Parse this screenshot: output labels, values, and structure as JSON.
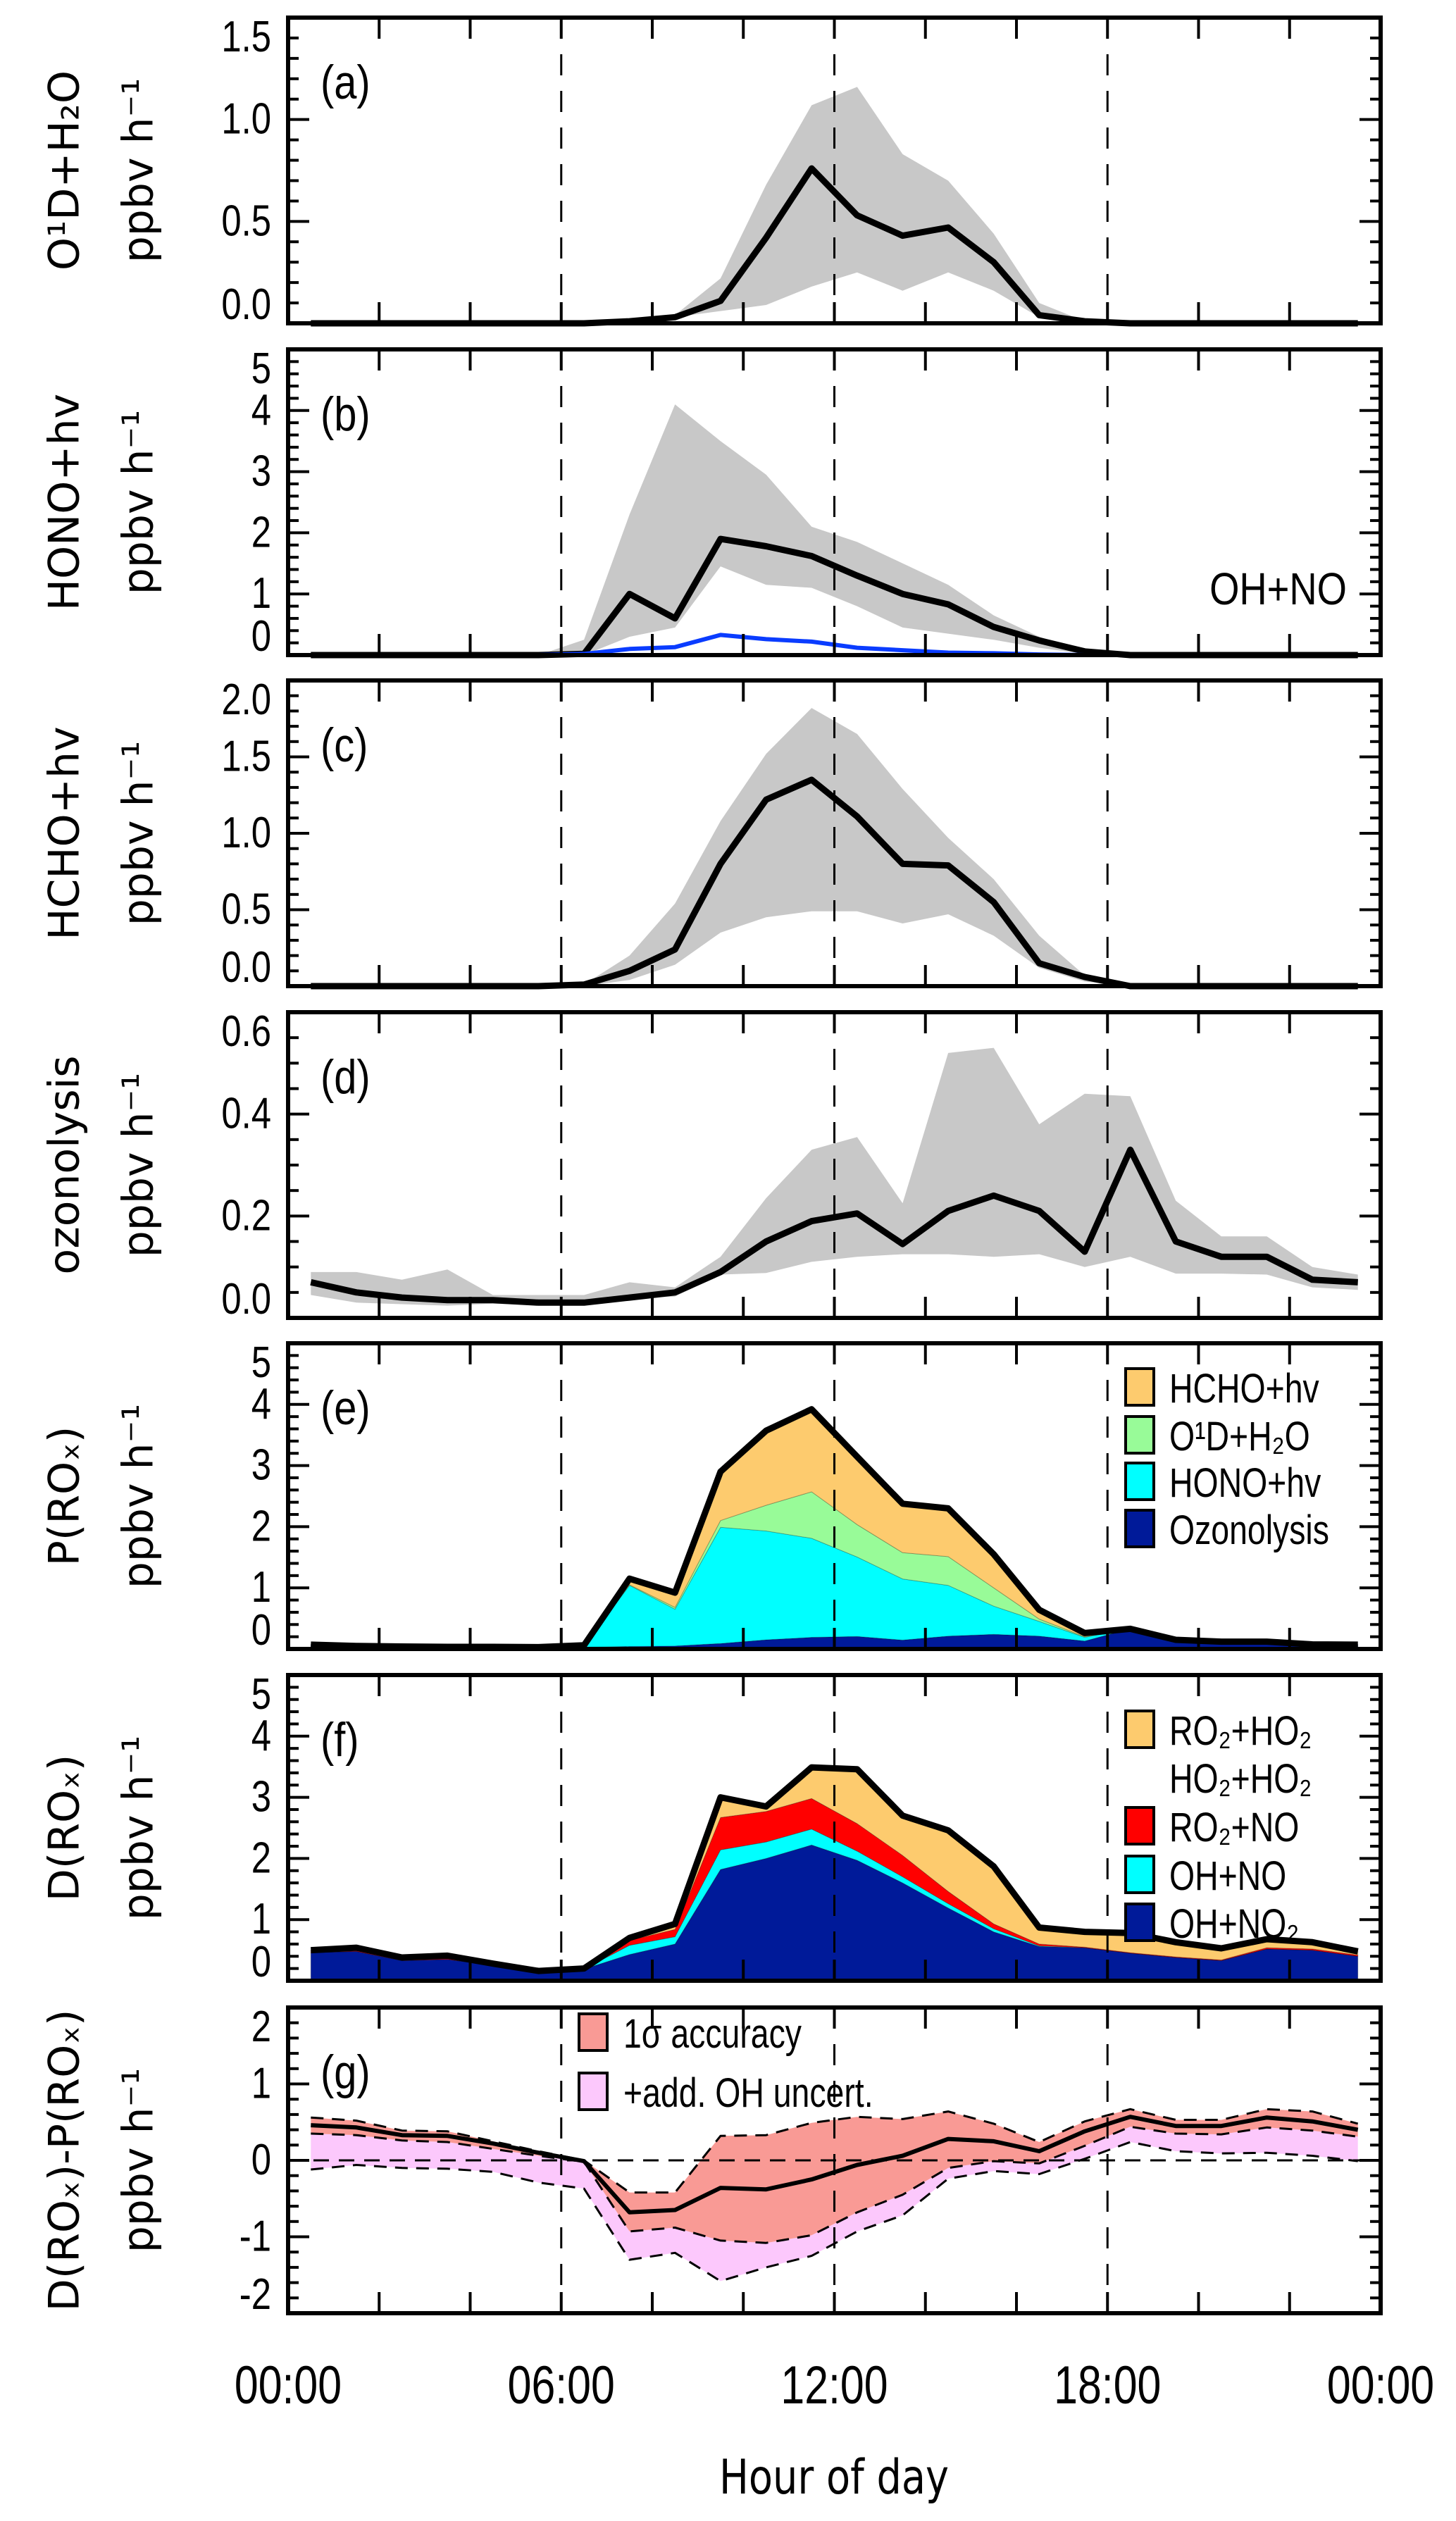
{
  "figure": {
    "xlabel": "Hour of day",
    "xlim": [
      0,
      24
    ],
    "xtick_hours": [
      0,
      6,
      12,
      18,
      24
    ],
    "xtick_labels": [
      "00:00",
      "06:00",
      "12:00",
      "18:00",
      "00:00"
    ],
    "dashed_vlines": [
      6,
      12,
      18
    ],
    "hours": [
      0.5,
      1.5,
      2.5,
      3.5,
      4.5,
      5.5,
      6.5,
      7.5,
      8.5,
      9.5,
      10.5,
      11.5,
      12.5,
      13.5,
      14.5,
      15.5,
      16.5,
      17.5,
      18.5,
      19.5,
      20.5,
      21.5,
      22.5,
      23.5
    ],
    "colors": {
      "band": "#c8c8c8",
      "line": "#000000",
      "blue": "#0a3cff",
      "hcho": "#fdcb6e",
      "o1d": "#98fb98",
      "hono": "#00ffff",
      "ozonolysis": "#001a99",
      "ro2ho2": "#fdcb6e",
      "ro2no": "#ff0000",
      "ohno": "#00ffff",
      "ohno2": "#001a99",
      "accuracy": "#f99a95",
      "oh_uncert": "#fcc8fc"
    }
  },
  "chart_data": [
    {
      "type": "line",
      "panel_label": "(a)",
      "ylabel": [
        "O¹D+H₂O",
        "ppbv h⁻¹"
      ],
      "ylim": [
        0,
        1.5
      ],
      "yticks": [
        0,
        0.5,
        1.0,
        1.5
      ],
      "ytick_labels": [
        "0.0",
        "0.5",
        "1.0",
        "1.5"
      ],
      "yminor": 0.1,
      "grid": false,
      "series": [
        {
          "values": [
            0,
            0,
            0,
            0,
            0,
            0,
            0,
            0.01,
            0.03,
            0.11,
            0.42,
            0.76,
            0.53,
            0.43,
            0.47,
            0.3,
            0.04,
            0.01,
            0,
            0,
            0,
            0,
            0,
            0
          ],
          "band_upper": [
            0,
            0,
            0,
            0,
            0,
            0,
            0,
            0.01,
            0.04,
            0.22,
            0.68,
            1.07,
            1.16,
            0.83,
            0.7,
            0.44,
            0.1,
            0.01,
            0,
            0,
            0,
            0,
            0,
            0
          ],
          "band_lower": [
            0,
            0,
            0,
            0,
            0,
            0,
            0,
            0.01,
            0.03,
            0.06,
            0.09,
            0.18,
            0.25,
            0.16,
            0.25,
            0.16,
            0.03,
            0,
            0,
            0,
            0,
            0,
            0,
            0
          ]
        }
      ]
    },
    {
      "type": "line",
      "panel_label": "(b)",
      "ylabel": [
        "HONO+hv",
        "ppbv h⁻¹"
      ],
      "ylim": [
        0,
        5
      ],
      "yticks": [
        0,
        1,
        2,
        3,
        4,
        5
      ],
      "ytick_labels": [
        "0",
        "1",
        "2",
        "3",
        "4",
        "5"
      ],
      "yminor": 0.2,
      "grid": false,
      "series": [
        {
          "values": [
            0,
            0,
            0,
            0,
            0,
            0,
            0.02,
            1.0,
            0.6,
            1.9,
            1.78,
            1.62,
            1.3,
            1.0,
            0.83,
            0.46,
            0.24,
            0.06,
            0,
            0,
            0,
            0,
            0,
            0
          ],
          "band_upper": [
            0,
            0,
            0,
            0,
            0,
            0,
            0.25,
            2.3,
            4.1,
            3.5,
            2.95,
            2.1,
            1.85,
            1.5,
            1.15,
            0.65,
            0.3,
            0.07,
            0,
            0,
            0,
            0,
            0,
            0
          ],
          "band_lower": [
            0,
            0,
            0,
            0,
            0,
            0,
            0,
            0.3,
            0.45,
            1.45,
            1.15,
            1.1,
            0.8,
            0.45,
            0.35,
            0.25,
            0.12,
            0.02,
            0,
            0,
            0,
            0,
            0,
            0
          ]
        },
        {
          "name": "OH+NO",
          "values": [
            0,
            0,
            0,
            0,
            0,
            0,
            0.02,
            0.1,
            0.13,
            0.33,
            0.26,
            0.22,
            0.12,
            0.08,
            0.04,
            0.03,
            0.01,
            0,
            0,
            0,
            0,
            0,
            0,
            0
          ]
        }
      ]
    },
    {
      "type": "line",
      "panel_label": "(c)",
      "ylabel": [
        "HCHO+hv",
        "ppbv h⁻¹"
      ],
      "ylim": [
        0,
        2.0
      ],
      "yticks": [
        0,
        0.5,
        1.0,
        1.5,
        2.0
      ],
      "ytick_labels": [
        "0.0",
        "0.5",
        "1.0",
        "1.5",
        "2.0"
      ],
      "yminor": 0.1,
      "grid": false,
      "series": [
        {
          "values": [
            0,
            0,
            0,
            0,
            0,
            0,
            0.01,
            0.1,
            0.24,
            0.8,
            1.22,
            1.35,
            1.11,
            0.8,
            0.79,
            0.55,
            0.15,
            0.06,
            0,
            0,
            0,
            0,
            0,
            0
          ],
          "band_upper": [
            0,
            0,
            0,
            0,
            0,
            0,
            0.01,
            0.2,
            0.54,
            1.08,
            1.52,
            1.82,
            1.65,
            1.29,
            0.97,
            0.7,
            0.33,
            0.07,
            0,
            0,
            0,
            0,
            0,
            0
          ],
          "band_lower": [
            0,
            0,
            0,
            0,
            0,
            0,
            0,
            0.04,
            0.14,
            0.35,
            0.45,
            0.49,
            0.49,
            0.41,
            0.47,
            0.33,
            0.12,
            0.03,
            0,
            0,
            0,
            0,
            0,
            0
          ]
        }
      ]
    },
    {
      "type": "line",
      "panel_label": "(d)",
      "ylabel": [
        "ozonolysis",
        "ppbv h⁻¹"
      ],
      "ylim": [
        0,
        0.6
      ],
      "yticks": [
        0,
        0.2,
        0.4,
        0.6
      ],
      "ytick_labels": [
        "0.0",
        "0.2",
        "0.4",
        "0.6"
      ],
      "yminor": 0.05,
      "grid": false,
      "series": [
        {
          "values": [
            0.07,
            0.05,
            0.04,
            0.035,
            0.035,
            0.03,
            0.03,
            0.04,
            0.05,
            0.09,
            0.15,
            0.19,
            0.205,
            0.145,
            0.21,
            0.24,
            0.21,
            0.13,
            0.33,
            0.15,
            0.12,
            0.12,
            0.075,
            0.07
          ],
          "band_upper": [
            0.09,
            0.09,
            0.075,
            0.095,
            0.045,
            0.045,
            0.045,
            0.07,
            0.06,
            0.12,
            0.235,
            0.33,
            0.355,
            0.225,
            0.52,
            0.53,
            0.38,
            0.44,
            0.435,
            0.23,
            0.16,
            0.16,
            0.1,
            0.085
          ],
          "band_lower": [
            0.045,
            0.03,
            0.027,
            0.024,
            0.028,
            0.025,
            0.025,
            0.038,
            0.042,
            0.085,
            0.088,
            0.11,
            0.12,
            0.125,
            0.125,
            0.12,
            0.125,
            0.1,
            0.12,
            0.087,
            0.087,
            0.085,
            0.06,
            0.055
          ]
        }
      ]
    },
    {
      "type": "area",
      "stacked": true,
      "panel_label": "(e)",
      "ylabel": [
        "P(ROₓ)",
        "ppbv h⁻¹"
      ],
      "ylim": [
        0,
        5
      ],
      "yticks": [
        0,
        1,
        2,
        3,
        4,
        5
      ],
      "ytick_labels": [
        "0",
        "1",
        "2",
        "3",
        "4",
        "5"
      ],
      "yminor": 0.2,
      "grid": false,
      "legend": "top-right",
      "series": [
        {
          "name": "Ozonolysis",
          "color": "#001a99",
          "values": [
            0.07,
            0.05,
            0.04,
            0.035,
            0.035,
            0.03,
            0.03,
            0.04,
            0.05,
            0.09,
            0.15,
            0.19,
            0.205,
            0.145,
            0.21,
            0.24,
            0.21,
            0.13,
            0.33,
            0.15,
            0.12,
            0.12,
            0.075,
            0.07
          ]
        },
        {
          "name": "HONO+hv",
          "color": "#00ffff",
          "values": [
            0,
            0,
            0,
            0,
            0,
            0,
            0.02,
            1.0,
            0.6,
            1.9,
            1.78,
            1.62,
            1.3,
            1.0,
            0.83,
            0.46,
            0.24,
            0.06,
            0,
            0,
            0,
            0,
            0,
            0
          ]
        },
        {
          "name": "O¹D+H₂O",
          "color": "#98fb98",
          "values": [
            0,
            0,
            0,
            0,
            0,
            0,
            0,
            0.01,
            0.03,
            0.11,
            0.42,
            0.76,
            0.53,
            0.43,
            0.47,
            0.3,
            0.04,
            0.01,
            0,
            0,
            0,
            0,
            0,
            0
          ]
        },
        {
          "name": "HCHO+hv",
          "color": "#fdcb6e",
          "values": [
            0,
            0,
            0,
            0,
            0,
            0,
            0.01,
            0.1,
            0.24,
            0.8,
            1.22,
            1.35,
            1.11,
            0.8,
            0.79,
            0.55,
            0.15,
            0.06,
            0,
            0,
            0,
            0,
            0,
            0
          ]
        }
      ],
      "legend_order": [
        "HCHO+hv",
        "O¹D+H₂O",
        "HONO+hv",
        "Ozonolysis"
      ]
    },
    {
      "type": "area",
      "stacked": true,
      "panel_label": "(f)",
      "ylabel": [
        "D(ROₓ)",
        "ppbv h⁻¹"
      ],
      "ylim": [
        0,
        5
      ],
      "yticks": [
        0,
        1,
        2,
        3,
        4,
        5
      ],
      "ytick_labels": [
        "0",
        "1",
        "2",
        "3",
        "4",
        "5"
      ],
      "yminor": 0.2,
      "grid": false,
      "legend": "top-right",
      "series": [
        {
          "name": "OH+NO₂",
          "color": "#001a99",
          "values": [
            0.46,
            0.48,
            0.33,
            0.35,
            0.25,
            0.15,
            0.19,
            0.43,
            0.6,
            1.82,
            2.0,
            2.22,
            1.97,
            1.6,
            1.19,
            0.8,
            0.56,
            0.54,
            0.45,
            0.38,
            0.33,
            0.52,
            0.5,
            0.4
          ]
        },
        {
          "name": "OH+NO",
          "color": "#00ffff",
          "values": [
            0,
            0,
            0,
            0,
            0,
            0,
            0,
            0.15,
            0.12,
            0.32,
            0.27,
            0.26,
            0.15,
            0.1,
            0.07,
            0.05,
            0.01,
            0,
            0,
            0,
            0,
            0,
            0,
            0
          ]
        },
        {
          "name": "RO₂+NO",
          "color": "#ff0000",
          "values": [
            0.03,
            0.03,
            0.02,
            0.02,
            0.01,
            0.01,
            0.01,
            0.08,
            0.12,
            0.53,
            0.5,
            0.5,
            0.45,
            0.35,
            0.2,
            0.08,
            0.03,
            0.01,
            0.01,
            0.01,
            0.01,
            0.02,
            0.02,
            0.02
          ]
        },
        {
          "name": "RO₂+HO₂",
          "name_line2": "HO₂+HO₂",
          "color": "#fdcb6e",
          "values": [
            0.01,
            0.03,
            0.03,
            0.04,
            0.02,
            0,
            0,
            0.04,
            0.09,
            0.33,
            0.08,
            0.51,
            0.89,
            0.65,
            1.0,
            0.94,
            0.27,
            0.25,
            0.32,
            0.24,
            0.19,
            0.14,
            0.11,
            0.06
          ]
        }
      ],
      "legend_order": [
        "RO₂+HO₂",
        "RO₂+NO",
        "OH+NO",
        "OH+NO₂"
      ]
    },
    {
      "type": "line",
      "panel_label": "(g)",
      "ylabel": [
        "D(ROₓ)-P(ROₓ)",
        "ppbv h⁻¹"
      ],
      "ylim": [
        -2,
        2
      ],
      "yticks": [
        -2,
        -1,
        0,
        1,
        2
      ],
      "ytick_labels": [
        "-2",
        "-1",
        "0",
        "1",
        "2"
      ],
      "yminor": 0.2,
      "grid": false,
      "hline": 0,
      "legend": "top-left",
      "series": [
        {
          "values": [
            0.46,
            0.43,
            0.33,
            0.32,
            0.22,
            0.1,
            -0.01,
            -0.68,
            -0.65,
            -0.36,
            -0.38,
            -0.25,
            -0.06,
            0.06,
            0.28,
            0.25,
            0.12,
            0.38,
            0.57,
            0.45,
            0.45,
            0.56,
            0.51,
            0.4
          ]
        }
      ],
      "bands": [
        {
          "name": "1σ accuracy",
          "color": "#f99a95",
          "upper": [
            0.56,
            0.52,
            0.39,
            0.38,
            0.25,
            0.12,
            0,
            -0.42,
            -0.42,
            0.32,
            0.33,
            0.49,
            0.57,
            0.54,
            0.64,
            0.48,
            0.24,
            0.51,
            0.67,
            0.53,
            0.53,
            0.67,
            0.64,
            0.48
          ],
          "lower": [
            0.35,
            0.33,
            0.26,
            0.24,
            0.15,
            0.06,
            -0.02,
            -0.93,
            -0.88,
            -1.05,
            -1.08,
            -0.98,
            -0.68,
            -0.45,
            -0.1,
            -0.01,
            -0.04,
            0.19,
            0.44,
            0.35,
            0.34,
            0.43,
            0.39,
            0.31
          ]
        },
        {
          "name": "+add. OH uncert.",
          "color": "#fcc8fc",
          "lower": [
            -0.12,
            -0.06,
            -0.1,
            -0.11,
            -0.15,
            -0.29,
            -0.37,
            -1.3,
            -1.21,
            -1.58,
            -1.4,
            -1.25,
            -0.93,
            -0.72,
            -0.24,
            -0.14,
            -0.18,
            0.02,
            0.24,
            0.12,
            0.09,
            0.1,
            0.06,
            -0.01
          ]
        }
      ]
    }
  ]
}
